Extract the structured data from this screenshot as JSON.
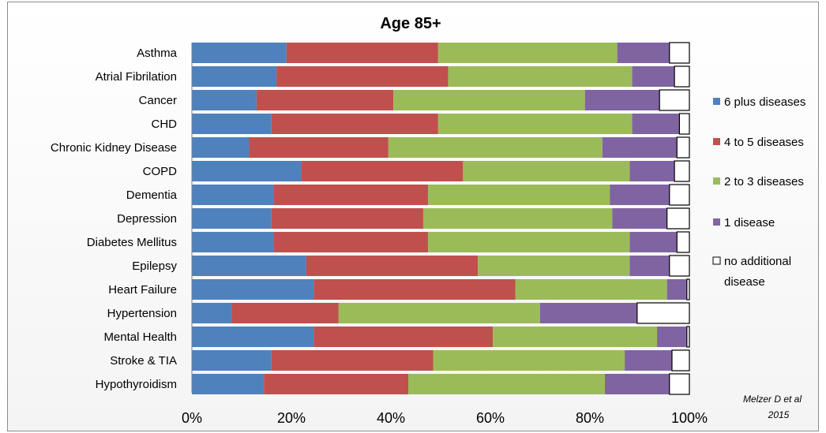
{
  "chart_data": {
    "type": "bar",
    "orientation": "horizontal",
    "stacked": true,
    "title": "Age 85+",
    "source": [
      "Melzer D et al",
      "2015"
    ],
    "categories": [
      "Asthma",
      "Atrial Fibrilation",
      "Cancer",
      "CHD",
      "Chronic Kidney Disease",
      "COPD",
      "Dementia",
      "Depression",
      "Diabetes Mellitus",
      "Epilepsy",
      "Heart Failure",
      "Hypertension",
      "Mental Health",
      "Stroke & TIA",
      "Hypothyroidism"
    ],
    "x_ticks": [
      "0%",
      "20%",
      "40%",
      "60%",
      "80%",
      "100%"
    ],
    "xlim": [
      0,
      100
    ],
    "legend_position": "right",
    "legend_labels": [
      "6 plus diseases",
      "4 to 5 diseases",
      "2 to 3 diseases",
      "1 disease",
      "no additional",
      "disease"
    ],
    "series": [
      {
        "name": "6 plus diseases",
        "color": "#4f81bd",
        "values": [
          19,
          17,
          13,
          16,
          11.5,
          22,
          16.5,
          16,
          16.5,
          23,
          24.5,
          8,
          24.5,
          16,
          14.5
        ]
      },
      {
        "name": "4 to 5 diseases",
        "color": "#c0504d",
        "values": [
          30.5,
          34.5,
          27.5,
          33.5,
          28,
          32.5,
          31,
          30.5,
          31,
          34.5,
          40.5,
          21.5,
          36,
          32.5,
          29
        ]
      },
      {
        "name": "2 to 3 diseases",
        "color": "#9bbb59",
        "values": [
          36,
          37,
          38.5,
          39,
          43,
          33.5,
          36.5,
          38,
          40.5,
          30.5,
          30.5,
          40.5,
          33,
          38.5,
          39.5
        ]
      },
      {
        "name": "1 disease",
        "color": "#8064a2",
        "values": [
          10.5,
          8.5,
          15,
          9.5,
          15,
          9,
          12,
          11,
          9.5,
          8,
          4,
          19.5,
          6,
          9.5,
          13
        ]
      },
      {
        "name": "no additional disease",
        "color": "#ffffff",
        "values": [
          4,
          3,
          6,
          2,
          2.5,
          3,
          4,
          4.5,
          2.5,
          4,
          0.5,
          10.5,
          0.5,
          3.5,
          4
        ]
      }
    ]
  }
}
